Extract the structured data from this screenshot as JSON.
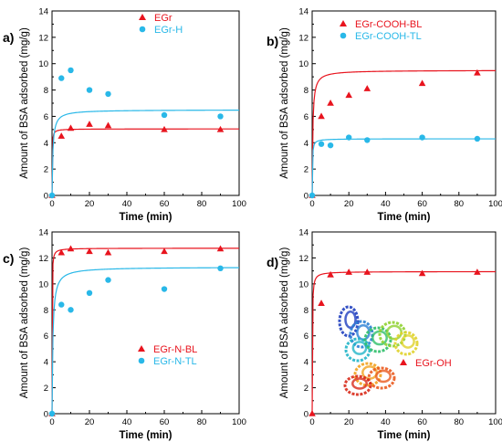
{
  "chart_data": [
    {
      "type": "scatter",
      "panel_label": "a)",
      "xlabel": "Time (min)",
      "ylabel": "Amount of BSA adsorbed (mg/g)",
      "xlim": [
        0,
        100
      ],
      "ylim": [
        0,
        14
      ],
      "xticks": [
        0,
        20,
        40,
        60,
        80,
        100
      ],
      "yticks": [
        0,
        2,
        4,
        6,
        8,
        10,
        12,
        14
      ],
      "legend_position": "top-right",
      "series": [
        {
          "name": "EGr",
          "marker": "triangle",
          "color": "#e8141e",
          "x": [
            0,
            5,
            10,
            20,
            30,
            60,
            90
          ],
          "y": [
            0,
            4.5,
            5.1,
            5.4,
            5.3,
            5.0,
            5.0
          ],
          "fit": {
            "qe": 5.05,
            "k": 2.5
          }
        },
        {
          "name": "EGr-H",
          "marker": "circle",
          "color": "#29b8e8",
          "x": [
            0,
            5,
            10,
            20,
            30,
            60,
            90
          ],
          "y": [
            0,
            8.9,
            9.5,
            8.0,
            7.7,
            6.1,
            6.0
          ],
          "fit": {
            "qe": 6.5,
            "k": 0.35
          }
        }
      ]
    },
    {
      "type": "scatter",
      "panel_label": "b)",
      "xlabel": "Time (min)",
      "ylabel": "Amount of BSA adsorbed (mg/g)",
      "xlim": [
        0,
        100
      ],
      "ylim": [
        0,
        14
      ],
      "xticks": [
        0,
        20,
        40,
        60,
        80,
        100
      ],
      "yticks": [
        0,
        2,
        4,
        6,
        8,
        10,
        12,
        14
      ],
      "legend_position": "top-right",
      "series": [
        {
          "name": "EGr-COOH-BL",
          "marker": "triangle",
          "color": "#e8141e",
          "x": [
            0,
            5,
            10,
            20,
            30,
            60,
            90
          ],
          "y": [
            0,
            6.0,
            7.0,
            7.6,
            8.1,
            8.5,
            9.3
          ],
          "fit": {
            "qe": 9.5,
            "k": 0.32
          }
        },
        {
          "name": "EGr-COOH-TL",
          "marker": "circle",
          "color": "#29b8e8",
          "x": [
            0,
            5,
            10,
            20,
            30,
            60,
            90
          ],
          "y": [
            0,
            3.9,
            3.8,
            4.4,
            4.2,
            4.4,
            4.3
          ],
          "fit": {
            "qe": 4.3,
            "k": 1.8
          }
        }
      ]
    },
    {
      "type": "scatter",
      "panel_label": "c)",
      "xlabel": "Time (min)",
      "ylabel": "Amount of BSA adsorbed (mg/g)",
      "xlim": [
        0,
        100
      ],
      "ylim": [
        0,
        14
      ],
      "xticks": [
        0,
        20,
        40,
        60,
        80,
        100
      ],
      "yticks": [
        0,
        2,
        4,
        6,
        8,
        10,
        12,
        14
      ],
      "legend_position": "bottom-right",
      "series": [
        {
          "name": "EGr-N-BL",
          "marker": "triangle",
          "color": "#e8141e",
          "x": [
            0,
            5,
            10,
            20,
            30,
            60,
            90
          ],
          "y": [
            0,
            12.4,
            12.7,
            12.5,
            12.4,
            12.5,
            12.7
          ],
          "fit": {
            "qe": 12.75,
            "k": 1.5
          }
        },
        {
          "name": "EGr-N-TL",
          "marker": "circle",
          "color": "#29b8e8",
          "x": [
            0,
            5,
            10,
            20,
            30,
            60,
            90
          ],
          "y": [
            0,
            8.4,
            8.0,
            9.3,
            10.3,
            9.6,
            11.2
          ],
          "fit": {
            "qe": 11.3,
            "k": 0.2
          }
        }
      ]
    },
    {
      "type": "scatter",
      "panel_label": "d)",
      "xlabel": "Time (min)",
      "ylabel": "Amount of BSA adsorbed (mg/g)",
      "xlim": [
        0,
        100
      ],
      "ylim": [
        0,
        14
      ],
      "xticks": [
        0,
        20,
        40,
        60,
        80,
        100
      ],
      "yticks": [
        0,
        2,
        4,
        6,
        8,
        10,
        12,
        14
      ],
      "legend_position": "center-right",
      "inset": "protein-ribbon-structure",
      "series": [
        {
          "name": "EGr-OH",
          "marker": "triangle",
          "color": "#e8141e",
          "x": [
            0,
            5,
            10,
            20,
            30,
            60,
            90
          ],
          "y": [
            0,
            8.5,
            10.7,
            10.9,
            10.9,
            10.8,
            10.9
          ],
          "fit": {
            "qe": 10.95,
            "k": 0.9
          }
        }
      ]
    }
  ]
}
